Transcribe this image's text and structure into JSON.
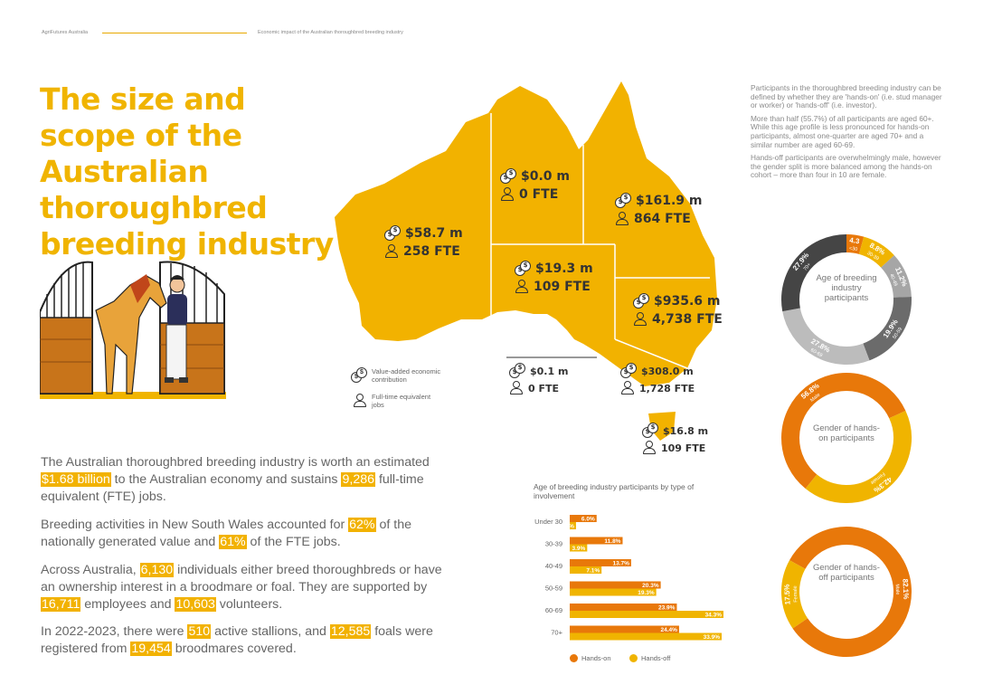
{
  "header": {
    "left": "AgriFutures Australia",
    "right": "Economic impact of the Australian thoroughbred breeding industry"
  },
  "title": "The size and scope of the Australian thoroughbred breeding industry",
  "right_text": [
    "Participants in the thoroughbred breeding industry can be defined by whether they are 'hands-on' (i.e. stud manager or worker) or 'hands-off' (i.e. investor).",
    "More than half (55.7%) of all participants are aged 60+. While this age profile is less pronounced for hands-on participants, almost one-quarter are aged 70+ and a similar number are aged 60-69.",
    "Hands-off participants are overwhelmingly male, however the gender split is more balanced among the hands-on cohort – more than four in 10 are female."
  ],
  "regions": [
    {
      "value": "$58.7 m",
      "fte": "258 FTE"
    },
    {
      "value": "$0.0 m",
      "fte": "0 FTE"
    },
    {
      "value": "$161.9 m",
      "fte": "864 FTE"
    },
    {
      "value": "$19.3 m",
      "fte": "109 FTE"
    },
    {
      "value": "$935.6 m",
      "fte": "4,738 FTE"
    },
    {
      "value": "$0.1 m",
      "fte": "0 FTE"
    },
    {
      "value": "$308.0 m",
      "fte": "1,728 FTE"
    },
    {
      "value": "$16.8 m",
      "fte": "109 FTE"
    }
  ],
  "map_legend": {
    "value_label": "Value-added economic contribution",
    "fte_label": "Full-time equivalent jobs"
  },
  "paragraphs": {
    "p1": {
      "t1": "The Australian thoroughbred breeding industry is worth an estimated ",
      "h1": "$1.68 billion",
      "t2": " to the Australian economy and sustains ",
      "h2": "9,286",
      "t3": " full-time equivalent (FTE) jobs."
    },
    "p2": {
      "t1": "Breeding activities in New South Wales accounted for ",
      "h1": "62%",
      "t2": " of the nationally generated value and ",
      "h2": "61%",
      "t3": " of the FTE jobs."
    },
    "p3": {
      "t1": "Across Australia, ",
      "h1": "6,130",
      "t2": " individuals either breed thoroughbreds or have an ownership interest in a broodmare or foal. They are supported by ",
      "h2": "16,711",
      "t3": " employees and ",
      "h3": "10,603",
      "t4": " volunteers."
    },
    "p4": {
      "t1": "In 2022-2023, there were ",
      "h1": "510",
      "t2": " active stallions, and ",
      "h2": "12,585",
      "t3": " foals were registered from ",
      "h3": "19,454",
      "t4": " broodmares covered."
    }
  },
  "chart_data": [
    {
      "type": "pie",
      "title": "Age of breeding industry participants",
      "categories": [
        "<30",
        "30-39",
        "40-49",
        "50-59",
        "60-69",
        "70+"
      ],
      "values": [
        4.3,
        8.8,
        11.2,
        19.9,
        27.8,
        27.9
      ],
      "value_labels": [
        "4.3",
        "8.8%",
        "11.2%",
        "19.9%",
        "27.8%",
        "27.9%"
      ],
      "colors": [
        "#E8780A",
        "#F0B400",
        "#a6a6a6",
        "#6b6b6b",
        "#bcbcbc",
        "#454545"
      ]
    },
    {
      "type": "pie",
      "title": "Gender of hands-on participants",
      "categories": [
        "Male",
        "Female"
      ],
      "values": [
        56.8,
        42.3
      ],
      "value_labels": [
        "56.8%",
        "42.3%"
      ],
      "colors": [
        "#E8780A",
        "#F0B400"
      ]
    },
    {
      "type": "pie",
      "title": "Gender of hands-off participants",
      "categories": [
        "Male",
        "Female"
      ],
      "values": [
        82.1,
        17.5
      ],
      "value_labels": [
        "82.1%",
        "17.5%"
      ],
      "colors": [
        "#E8780A",
        "#F0B400"
      ]
    },
    {
      "type": "bar",
      "orientation": "horizontal",
      "title": "Age of breeding industry participants by type of involvement",
      "categories": [
        "Under 30",
        "30-39",
        "40-49",
        "50-59",
        "60-69",
        "70+"
      ],
      "series": [
        {
          "name": "Hands-on",
          "values": [
            6.0,
            11.8,
            13.7,
            20.3,
            23.9,
            24.4
          ],
          "labels": [
            "6.0%",
            "11.8%",
            "13.7%",
            "20.3%",
            "23.9%",
            "24.4%"
          ],
          "color": "#E8780A"
        },
        {
          "name": "Hands-off",
          "values": [
            1.4,
            3.9,
            7.1,
            19.3,
            34.3,
            33.9
          ],
          "labels": [
            "1.4%",
            "3.9%",
            "7.1%",
            "19.3%",
            "34.3%",
            "33.9%"
          ],
          "color": "#F0B400"
        }
      ]
    }
  ]
}
